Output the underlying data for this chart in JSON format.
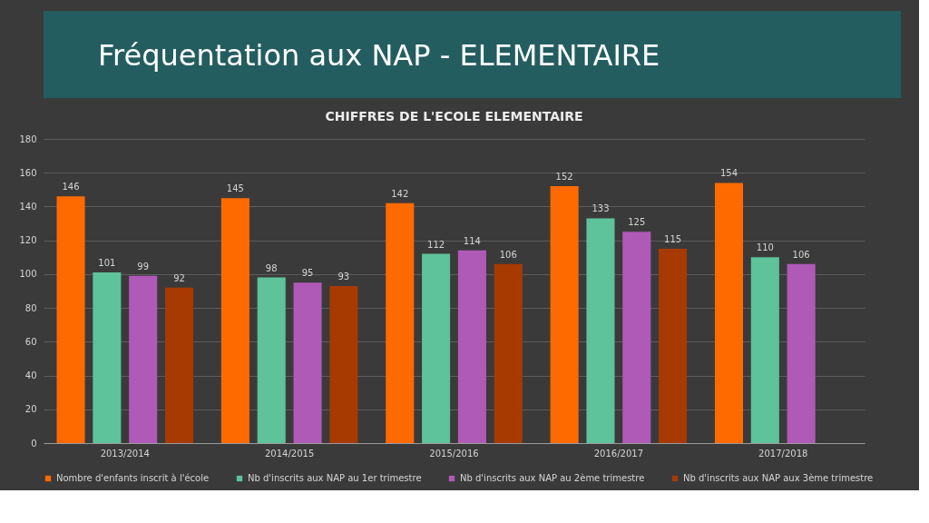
{
  "chart_data": {
    "type": "bar",
    "title": "Fréquentation aux NAP - ELEMENTAIRE",
    "subtitle": "CHIFFRES DE L'ECOLE ELEMENTAIRE",
    "categories": [
      "2013/2014",
      "2014/2015",
      "2015/2016",
      "2016/2017",
      "2017/2018"
    ],
    "series": [
      {
        "name": "Nombre d'enfants inscrit à l'école",
        "color": "#ff6a00",
        "values": [
          146,
          145,
          142,
          152,
          154
        ]
      },
      {
        "name": "Nb d'inscrits aux NAP au 1er trimestre",
        "color": "#5ec29b",
        "values": [
          101,
          98,
          112,
          133,
          110
        ]
      },
      {
        "name": "Nb d'inscrits aux NAP au 2ème trimestre",
        "color": "#b05ab8",
        "values": [
          99,
          95,
          114,
          125,
          106
        ]
      },
      {
        "name": "Nb d'inscrits aux NAP aux 3ème trimestre",
        "color": "#a63a00",
        "values": [
          92,
          93,
          106,
          115,
          null
        ]
      }
    ],
    "ylim": [
      0,
      180
    ],
    "yticks": [
      0,
      20,
      40,
      60,
      80,
      100,
      120,
      140,
      160,
      180
    ],
    "grid": "y",
    "legend": "bottom",
    "data_labels": true
  }
}
